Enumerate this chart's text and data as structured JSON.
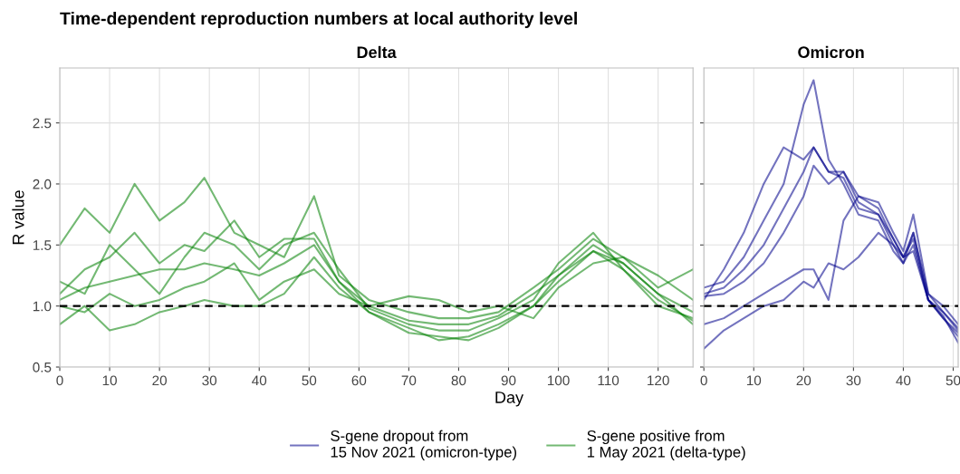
{
  "chart_data": [
    {
      "type": "line",
      "title": "Time-dependent reproduction numbers at local authority level",
      "subtitle": "Delta",
      "xlabel": "Day",
      "ylabel": "R value",
      "xlim": [
        0,
        127
      ],
      "xticks": [
        0,
        10,
        20,
        30,
        40,
        50,
        60,
        70,
        80,
        90,
        100,
        110,
        120
      ],
      "ylim": [
        0.5,
        2.95
      ],
      "yticks": [
        0.5,
        {
          "value": 1,
          "label": "1.0"
        },
        1.5,
        {
          "value": 2,
          "label": "2.0"
        },
        2.5
      ],
      "grid": true,
      "legend": "bottom",
      "ref_lines": [
        {
          "axis": "y",
          "value": 1,
          "color": "#000000",
          "line_style": "dashed"
        }
      ],
      "x": [
        0,
        5,
        10,
        15,
        20,
        25,
        29,
        35,
        40,
        45,
        51,
        56,
        62,
        70,
        76,
        82,
        88,
        95,
        100,
        107,
        113,
        120,
        127
      ],
      "series": [
        {
          "name": "S-gene positive from\n1 May 2021 (delta-type)",
          "color": "#008000",
          "values": [
            1.05,
            1.15,
            1.2,
            1.25,
            1.3,
            1.3,
            1.35,
            1.3,
            1.25,
            1.35,
            1.5,
            1.2,
            1.0,
            0.88,
            0.85,
            0.85,
            0.92,
            1.1,
            1.25,
            1.5,
            1.35,
            1.1,
            0.95
          ]
        },
        {
          "color": "#008000",
          "values": [
            1.5,
            1.8,
            1.6,
            2.0,
            1.7,
            1.85,
            2.05,
            1.6,
            1.5,
            1.4,
            1.9,
            1.25,
            1.05,
            0.95,
            0.9,
            0.9,
            0.95,
            1.15,
            1.3,
            1.55,
            1.4,
            1.15,
            1.3
          ]
        },
        {
          "color": "#008000",
          "values": [
            0.85,
            1.0,
            0.8,
            0.85,
            0.95,
            1.0,
            1.05,
            1.0,
            1.0,
            1.1,
            1.4,
            1.15,
            0.95,
            0.82,
            0.72,
            0.75,
            0.85,
            1.0,
            1.2,
            1.45,
            1.3,
            1.05,
            0.88
          ]
        },
        {
          "color": "#008000",
          "values": [
            1.2,
            1.1,
            1.5,
            1.3,
            1.1,
            1.4,
            1.6,
            1.5,
            1.3,
            1.5,
            1.6,
            1.3,
            0.98,
            0.85,
            0.8,
            0.8,
            0.9,
            1.05,
            1.35,
            1.6,
            1.3,
            1.0,
            0.9
          ]
        },
        {
          "color": "#008000",
          "values": [
            1.0,
            0.95,
            1.1,
            1.0,
            1.05,
            1.15,
            1.2,
            1.35,
            1.05,
            1.2,
            1.3,
            1.1,
            1.0,
            1.08,
            1.05,
            0.95,
            1.0,
            0.9,
            1.15,
            1.35,
            1.4,
            1.25,
            1.05
          ]
        },
        {
          "color": "#008000",
          "values": [
            1.1,
            1.3,
            1.4,
            1.6,
            1.35,
            1.5,
            1.45,
            1.7,
            1.4,
            1.55,
            1.55,
            1.2,
            0.95,
            0.78,
            0.75,
            0.72,
            0.82,
            1.0,
            1.25,
            1.45,
            1.35,
            1.1,
            0.85
          ]
        }
      ]
    },
    {
      "type": "line",
      "subtitle": "Omicron",
      "xlim": [
        0,
        51
      ],
      "xticks": [
        0,
        10,
        20,
        30,
        40,
        50
      ],
      "ylim": [
        0.5,
        2.95
      ],
      "tick_labels": "x",
      "grid": true,
      "ref_lines": [
        {
          "axis": "y",
          "value": 1,
          "color": "#000000",
          "line_style": "dashed"
        }
      ],
      "x": [
        0,
        4,
        8,
        12,
        16,
        20,
        22,
        25,
        28,
        31,
        35,
        38,
        40,
        42,
        45,
        48,
        51
      ],
      "series": [
        {
          "name": "S-gene dropout from\n15 Nov 2021 (omicron-type)",
          "color": "#00008b",
          "values": [
            1.1,
            1.15,
            1.3,
            1.5,
            1.8,
            2.1,
            2.3,
            2.1,
            2.05,
            1.8,
            1.75,
            1.5,
            1.4,
            1.6,
            1.1,
            0.95,
            0.8
          ]
        },
        {
          "color": "#00008b",
          "values": [
            1.15,
            1.2,
            1.4,
            1.7,
            2.0,
            2.65,
            2.85,
            2.2,
            2.0,
            1.75,
            1.7,
            1.45,
            1.35,
            1.5,
            1.05,
            0.9,
            0.75
          ]
        },
        {
          "color": "#00008b",
          "values": [
            1.05,
            1.3,
            1.6,
            2.0,
            2.3,
            2.2,
            2.3,
            2.1,
            2.1,
            1.85,
            1.75,
            1.55,
            1.4,
            1.55,
            1.05,
            0.95,
            0.82
          ]
        },
        {
          "color": "#00008b",
          "values": [
            1.08,
            1.1,
            1.2,
            1.35,
            1.6,
            1.9,
            2.15,
            2.0,
            2.1,
            1.9,
            1.85,
            1.6,
            1.45,
            1.75,
            1.1,
            1.0,
            0.85
          ]
        },
        {
          "color": "#00008b",
          "values": [
            0.85,
            0.9,
            1.0,
            1.1,
            1.2,
            1.3,
            1.3,
            1.05,
            1.7,
            1.9,
            1.8,
            1.55,
            1.4,
            1.45,
            1.05,
            0.9,
            0.78
          ]
        },
        {
          "color": "#00008b",
          "values": [
            0.65,
            0.8,
            0.9,
            1.0,
            1.05,
            1.2,
            1.15,
            1.35,
            1.3,
            1.4,
            1.6,
            1.5,
            1.35,
            1.6,
            1.05,
            0.92,
            0.7
          ]
        }
      ]
    }
  ]
}
